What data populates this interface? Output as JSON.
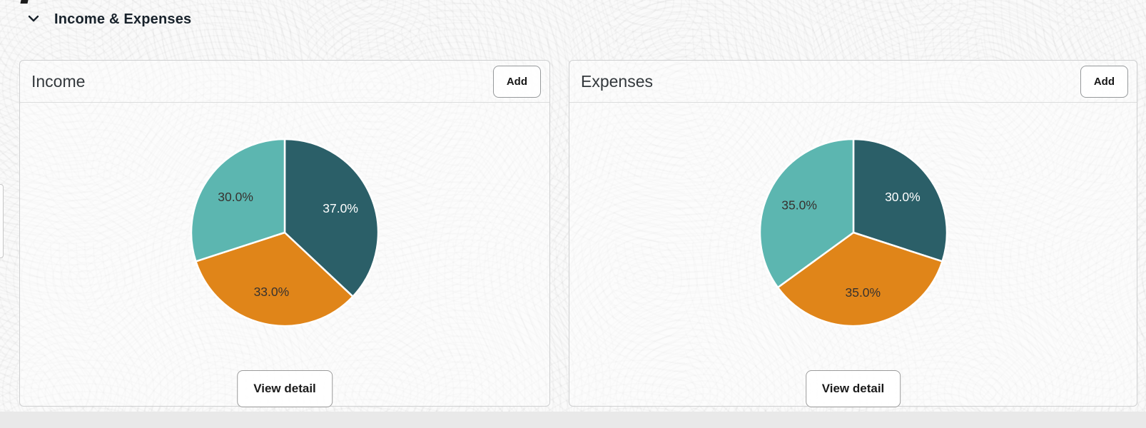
{
  "section": {
    "title": "Income & Expenses",
    "collapse_icon": "chevron-down-icon"
  },
  "cards": [
    {
      "title": "Income",
      "add_label": "Add",
      "view_detail_label": "View detail"
    },
    {
      "title": "Expenses",
      "add_label": "Add",
      "view_detail_label": "View detail"
    }
  ],
  "colors": {
    "slice_dark_teal": "#2b5f68",
    "slice_orange": "#e08519",
    "slice_light_teal": "#5cb6b0",
    "label_dark": "#37322f",
    "label_light": "#ffffff",
    "card_border": "#cfd0d1",
    "footer_strip": "#e9e9e9"
  },
  "chart_data": [
    {
      "type": "pie",
      "title": "Income",
      "start_angle_deg": 0,
      "direction": "clockwise",
      "label_radius_fraction": 0.65,
      "legend": "none",
      "slices": [
        {
          "label": "37.0%",
          "value": 37.0,
          "color": "#2b5f68",
          "label_color": "#ffffff"
        },
        {
          "label": "33.0%",
          "value": 33.0,
          "color": "#e08519",
          "label_color": "#37322f"
        },
        {
          "label": "30.0%",
          "value": 30.0,
          "color": "#5cb6b0",
          "label_color": "#37322f"
        }
      ]
    },
    {
      "type": "pie",
      "title": "Expenses",
      "start_angle_deg": 0,
      "direction": "clockwise",
      "label_radius_fraction": 0.65,
      "legend": "none",
      "slices": [
        {
          "label": "30.0%",
          "value": 30.0,
          "color": "#2b5f68",
          "label_color": "#ffffff"
        },
        {
          "label": "35.0%",
          "value": 35.0,
          "color": "#e08519",
          "label_color": "#37322f"
        },
        {
          "label": "35.0%",
          "value": 35.0,
          "color": "#5cb6b0",
          "label_color": "#37322f"
        }
      ]
    }
  ]
}
